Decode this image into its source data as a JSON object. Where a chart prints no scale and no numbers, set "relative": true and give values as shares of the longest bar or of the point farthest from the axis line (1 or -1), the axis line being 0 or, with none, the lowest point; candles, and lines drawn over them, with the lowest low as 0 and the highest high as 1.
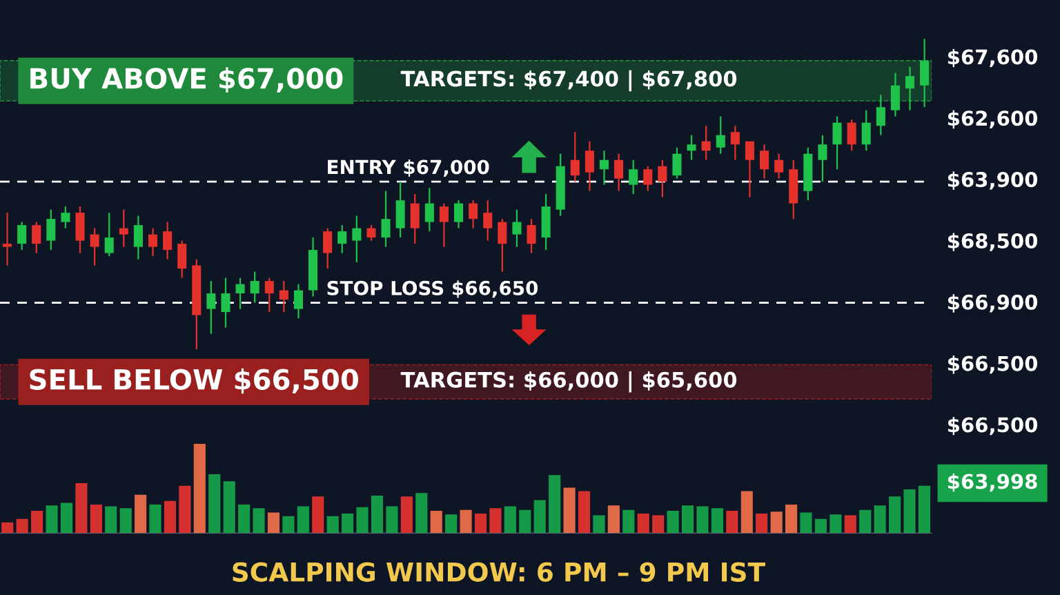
{
  "chart_data": [
    {
      "type": "candlestick",
      "relative": true,
      "categories": [
        null,
        null,
        null,
        null,
        null,
        null,
        null,
        null,
        null,
        null,
        null,
        null,
        null,
        null,
        null,
        null,
        null,
        null,
        null,
        null,
        null,
        null,
        null,
        null,
        null,
        null,
        null,
        null,
        null,
        null,
        null,
        null,
        null,
        null,
        null,
        null,
        null,
        null,
        null,
        null,
        null,
        null,
        null,
        null,
        null,
        null,
        null,
        null,
        null,
        null,
        null,
        null,
        null,
        null,
        null,
        null,
        null,
        null,
        null,
        null,
        null,
        null,
        null,
        null
      ],
      "ohlc": [
        [
          0.34,
          0.44,
          0.27,
          0.33
        ],
        [
          0.34,
          0.41,
          0.32,
          0.4
        ],
        [
          0.4,
          0.41,
          0.31,
          0.34
        ],
        [
          0.35,
          0.45,
          0.32,
          0.42
        ],
        [
          0.41,
          0.46,
          0.39,
          0.44
        ],
        [
          0.44,
          0.46,
          0.31,
          0.35
        ],
        [
          0.37,
          0.39,
          0.27,
          0.33
        ],
        [
          0.31,
          0.44,
          0.3,
          0.36
        ],
        [
          0.39,
          0.45,
          0.33,
          0.37
        ],
        [
          0.33,
          0.43,
          0.29,
          0.4
        ],
        [
          0.37,
          0.39,
          0.3,
          0.33
        ],
        [
          0.38,
          0.41,
          0.29,
          0.32
        ],
        [
          0.34,
          0.35,
          0.23,
          0.26
        ],
        [
          0.27,
          0.29,
          0,
          0.11
        ],
        [
          0.13,
          0.22,
          0.05,
          0.18
        ],
        [
          0.12,
          0.23,
          0.07,
          0.18
        ],
        [
          0.18,
          0.23,
          0.13,
          0.21
        ],
        [
          0.18,
          0.25,
          0.15,
          0.22
        ],
        [
          0.22,
          0.23,
          0.12,
          0.18
        ],
        [
          0.19,
          0.22,
          0.12,
          0.16
        ],
        [
          0.13,
          0.21,
          0.1,
          0.19
        ],
        [
          0.19,
          0.36,
          0.17,
          0.32
        ],
        [
          0.38,
          0.39,
          0.26,
          0.31
        ],
        [
          0.34,
          0.4,
          0.31,
          0.38
        ],
        [
          0.35,
          0.43,
          0.28,
          0.39
        ],
        [
          0.39,
          0.4,
          0.35,
          0.36
        ],
        [
          0.36,
          0.51,
          0.33,
          0.42
        ],
        [
          0.39,
          0.54,
          0.36,
          0.48
        ],
        [
          0.47,
          0.5,
          0.34,
          0.39
        ],
        [
          0.41,
          0.52,
          0.38,
          0.47
        ],
        [
          0.46,
          0.47,
          0.33,
          0.41
        ],
        [
          0.41,
          0.48,
          0.39,
          0.47
        ],
        [
          0.47,
          0.48,
          0.39,
          0.42
        ],
        [
          0.44,
          0.48,
          0.35,
          0.39
        ],
        [
          0.41,
          0.42,
          0.25,
          0.34
        ],
        [
          0.37,
          0.45,
          0.33,
          0.41
        ],
        [
          0.4,
          0.42,
          0.31,
          0.34
        ],
        [
          0.36,
          0.5,
          0.32,
          0.46
        ],
        [
          0.45,
          0.63,
          0.43,
          0.59
        ],
        [
          0.61,
          0.7,
          0.54,
          0.56
        ],
        [
          0.64,
          0.67,
          0.51,
          0.57
        ],
        [
          0.58,
          0.64,
          0.53,
          0.61
        ],
        [
          0.61,
          0.63,
          0.51,
          0.55
        ],
        [
          0.53,
          0.61,
          0.5,
          0.58
        ],
        [
          0.58,
          0.59,
          0.51,
          0.53
        ],
        [
          0.59,
          0.61,
          0.49,
          0.54
        ],
        [
          0.56,
          0.65,
          0.55,
          0.63
        ],
        [
          0.64,
          0.69,
          0.61,
          0.66
        ],
        [
          0.67,
          0.72,
          0.61,
          0.64
        ],
        [
          0.65,
          0.75,
          0.63,
          0.69
        ],
        [
          0.7,
          0.72,
          0.61,
          0.66
        ],
        [
          0.67,
          0.67,
          0.49,
          0.61
        ],
        [
          0.64,
          0.66,
          0.55,
          0.58
        ],
        [
          0.61,
          0.63,
          0.55,
          0.57
        ],
        [
          0.58,
          0.61,
          0.42,
          0.47
        ],
        [
          0.51,
          0.65,
          0.48,
          0.63
        ],
        [
          0.61,
          0.69,
          0.54,
          0.66
        ],
        [
          0.66,
          0.75,
          0.58,
          0.73
        ],
        [
          0.73,
          0.74,
          0.64,
          0.66
        ],
        [
          0.66,
          0.77,
          0.64,
          0.73
        ],
        [
          0.72,
          0.82,
          0.69,
          0.78
        ],
        [
          0.77,
          0.89,
          0.75,
          0.85
        ],
        [
          0.84,
          0.91,
          0.77,
          0.88
        ],
        [
          0.85,
          1,
          0.78,
          0.93
        ]
      ],
      "colors": [
        "#e5322d",
        "#1fc24b",
        "#e5322d",
        "#1fc24b",
        "#1fc24b",
        "#e5322d",
        "#e5322d",
        "#1fc24b",
        "#e5322d",
        "#1fc24b",
        "#e5322d",
        "#e5322d",
        "#e5322d",
        "#e5322d",
        "#1fc24b",
        "#1fc24b",
        "#1fc24b",
        "#1fc24b",
        "#e5322d",
        "#e5322d",
        "#1fc24b",
        "#1fc24b",
        "#e5322d",
        "#1fc24b",
        "#1fc24b",
        "#e5322d",
        "#1fc24b",
        "#1fc24b",
        "#e5322d",
        "#1fc24b",
        "#e5322d",
        "#1fc24b",
        "#e5322d",
        "#e5322d",
        "#e5322d",
        "#1fc24b",
        "#e5322d",
        "#1fc24b",
        "#1fc24b",
        "#e5322d",
        "#e5322d",
        "#1fc24b",
        "#e5322d",
        "#1fc24b",
        "#e5322d",
        "#e5322d",
        "#1fc24b",
        "#1fc24b",
        "#e5322d",
        "#1fc24b",
        "#e5322d",
        "#e5322d",
        "#e5322d",
        "#e5322d",
        "#e5322d",
        "#1fc24b",
        "#1fc24b",
        "#1fc24b",
        "#e5322d",
        "#1fc24b",
        "#1fc24b",
        "#1fc24b",
        "#1fc24b",
        "#1fc24b"
      ],
      "ref_lines": [
        {
          "axis": "y",
          "value": 0.54,
          "label": "ENTRY $67,000",
          "color": "#ffffff",
          "line_style": "dashed"
        },
        {
          "axis": "y",
          "value": 0.15,
          "label": "STOP LOSS $66,650",
          "color": "#ffffff",
          "line_style": "dashed"
        }
      ],
      "bands": [
        {
          "axis": "y",
          "from": 0.8,
          "to": 0.93,
          "label": "TARGETS: $67,400 | $67,800",
          "color": "#1f8a3c"
        },
        {
          "axis": "y",
          "from": -0.16,
          "to": -0.05,
          "label": "TARGETS: $66,000 | $65,600",
          "color": "#9a1f1f"
        }
      ],
      "annotations": [
        "BUY ABOVE $67,000",
        "SELL BELOW $66,500",
        "$67,600",
        "$62,600",
        "$63,900",
        "$68,500",
        "$66,900",
        "$66,500",
        "$66,500"
      ]
    },
    {
      "type": "bar",
      "relative": true,
      "categories": [
        null,
        null,
        null,
        null,
        null,
        null,
        null,
        null,
        null,
        null,
        null,
        null,
        null,
        null,
        null,
        null,
        null,
        null,
        null,
        null,
        null,
        null,
        null,
        null,
        null,
        null,
        null,
        null,
        null,
        null,
        null,
        null,
        null,
        null,
        null,
        null,
        null,
        null,
        null,
        null,
        null,
        null,
        null,
        null,
        null,
        null,
        null,
        null,
        null,
        null,
        null,
        null,
        null,
        null,
        null,
        null,
        null,
        null,
        null,
        null,
        null,
        null,
        null
      ],
      "values": [
        0.12,
        0.16,
        0.25,
        0.31,
        0.34,
        0.56,
        0.32,
        0.3,
        0.28,
        0.43,
        0.32,
        0.36,
        0.53,
        1,
        0.66,
        0.58,
        0.32,
        0.28,
        0.23,
        0.19,
        0.3,
        0.41,
        0.19,
        0.22,
        0.29,
        0.42,
        0.3,
        0.41,
        0.45,
        0.25,
        0.21,
        0.26,
        0.22,
        0.28,
        0.3,
        0.26,
        0.37,
        0.65,
        0.51,
        0.47,
        0.2,
        0.31,
        0.26,
        0.22,
        0.2,
        0.25,
        0.31,
        0.3,
        0.28,
        0.25,
        0.47,
        0.22,
        0.24,
        0.32,
        0.23,
        0.16,
        0.21,
        0.2,
        0.26,
        0.31,
        0.41,
        0.49,
        0.53
      ],
      "colors": [
        "#d5322f",
        "#d5322f",
        "#d5322f",
        "#159a48",
        "#159a48",
        "#d5322f",
        "#d5322f",
        "#159a48",
        "#159a48",
        "#e06a48",
        "#159a48",
        "#d5322f",
        "#d5322f",
        "#e06a48",
        "#159a48",
        "#159a48",
        "#159a48",
        "#159a48",
        "#e06a48",
        "#159a48",
        "#159a48",
        "#d5322f",
        "#159a48",
        "#159a48",
        "#159a48",
        "#159a48",
        "#159a48",
        "#d5322f",
        "#159a48",
        "#e06a48",
        "#159a48",
        "#e06a48",
        "#d5322f",
        "#d5322f",
        "#159a48",
        "#159a48",
        "#159a48",
        "#159a48",
        "#e06a48",
        "#d5322f",
        "#159a48",
        "#e06a48",
        "#159a48",
        "#d5322f",
        "#d5322f",
        "#159a48",
        "#159a48",
        "#159a48",
        "#159a48",
        "#d5322f",
        "#e06a48",
        "#d5322f",
        "#e06a48",
        "#e06a48",
        "#159a48",
        "#159a48",
        "#159a48",
        "#d5322f",
        "#159a48",
        "#159a48",
        "#159a48",
        "#159a48",
        "#159a48"
      ],
      "annotations": [
        "$63,998",
        "SCALPING WINDOW: 6 PM – 9 PM IST"
      ]
    }
  ]
}
